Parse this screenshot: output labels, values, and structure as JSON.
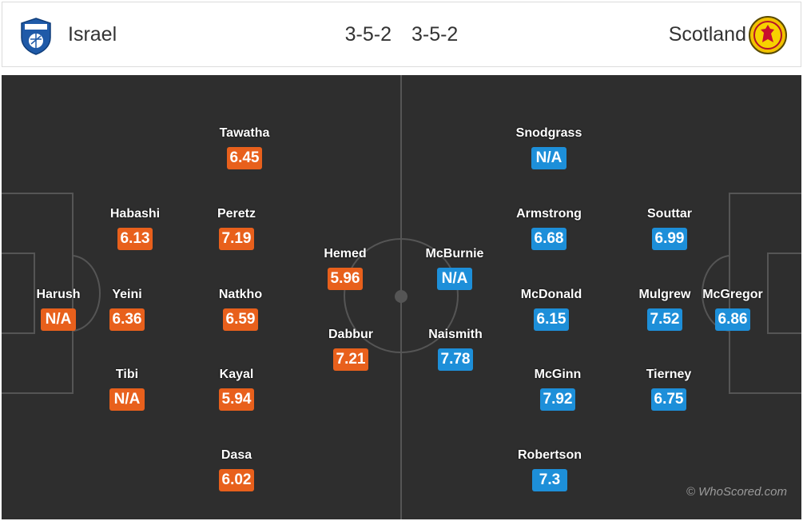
{
  "header": {
    "home_team": "Israel",
    "away_team": "Scotland",
    "home_formation": "3-5-2",
    "away_formation": "3-5-2"
  },
  "colors": {
    "home_rating": "#e8601c",
    "away_rating": "#1d8fd9",
    "pitch": "#2e2e2e"
  },
  "icons": {
    "home_crest": "israel-fa-crest",
    "away_crest": "scotland-fa-crest"
  },
  "home_players": [
    {
      "name": "Tawatha",
      "rating": "6.45"
    },
    {
      "name": "Habashi",
      "rating": "6.13"
    },
    {
      "name": "Peretz",
      "rating": "7.19"
    },
    {
      "name": "Hemed",
      "rating": "5.96"
    },
    {
      "name": "Harush",
      "rating": "N/A"
    },
    {
      "name": "Yeini",
      "rating": "6.36"
    },
    {
      "name": "Natkho",
      "rating": "6.59"
    },
    {
      "name": "Dabbur",
      "rating": "7.21"
    },
    {
      "name": "Tibi",
      "rating": "N/A"
    },
    {
      "name": "Kayal",
      "rating": "5.94"
    },
    {
      "name": "Dasa",
      "rating": "6.02"
    }
  ],
  "away_players": [
    {
      "name": "Snodgrass",
      "rating": "N/A"
    },
    {
      "name": "Armstrong",
      "rating": "6.68"
    },
    {
      "name": "Souttar",
      "rating": "6.99"
    },
    {
      "name": "McBurnie",
      "rating": "N/A"
    },
    {
      "name": "McDonald",
      "rating": "6.15"
    },
    {
      "name": "Mulgrew",
      "rating": "7.52"
    },
    {
      "name": "McGregor",
      "rating": "6.86"
    },
    {
      "name": "Naismith",
      "rating": "7.78"
    },
    {
      "name": "McGinn",
      "rating": "7.92"
    },
    {
      "name": "Tierney",
      "rating": "6.75"
    },
    {
      "name": "Robertson",
      "rating": "7.3"
    }
  ],
  "watermark": "© WhoScored.com"
}
